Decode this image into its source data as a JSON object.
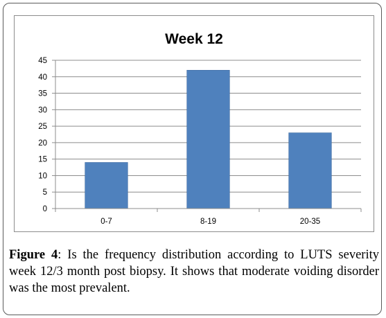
{
  "chart_data": {
    "type": "bar",
    "title": "Week 12",
    "categories": [
      "0-7",
      "8-19",
      "20-35"
    ],
    "values": [
      14,
      42,
      23
    ],
    "ylim": [
      0,
      45
    ],
    "yticks": [
      0,
      5,
      10,
      15,
      20,
      25,
      30,
      35,
      40,
      45
    ],
    "xlabel": "",
    "ylabel": "",
    "grid": true,
    "legend": "none",
    "bar_color": "#4f81bd"
  },
  "caption": {
    "label": "Figure 4",
    "text": ": Is the frequency distribution according to LUTS severity week 12/3 month post biopsy. It shows that moderate voiding disorder was the most prevalent."
  }
}
